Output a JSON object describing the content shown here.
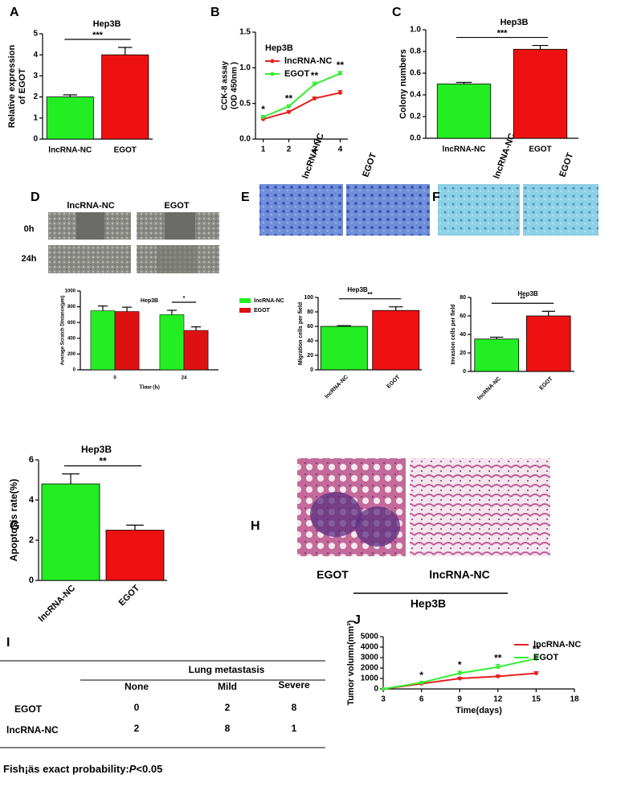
{
  "chart_data": [
    {
      "panel": "A",
      "type": "bar",
      "title": "Hep3B",
      "ylabel": [
        "Relative expression",
        "of EGOT"
      ],
      "categories": [
        "lncRNA-NC",
        "EGOT"
      ],
      "values": [
        2.0,
        4.0
      ],
      "errors": [
        0.1,
        0.35
      ],
      "colors": [
        "#22ee22",
        "#ee1111"
      ],
      "ylim": [
        0,
        5
      ],
      "yticks": [
        0,
        1,
        2,
        3,
        4,
        5
      ],
      "significance": "***"
    },
    {
      "panel": "B",
      "type": "line",
      "ylabel": [
        "CCK-8 assay",
        "(OD 450nm )"
      ],
      "legend_title": "Hep3B",
      "x": [
        1,
        2,
        3,
        4
      ],
      "xlim": [
        0.7,
        4.3
      ],
      "xticks": [
        1,
        2,
        3,
        4
      ],
      "series": [
        {
          "name": "lncRNA-NC",
          "color": "#e82020",
          "values": [
            0.28,
            0.38,
            0.57,
            0.65
          ],
          "errors": [
            0.02,
            0.02,
            0.02,
            0.03
          ]
        },
        {
          "name": "EGOT",
          "color": "#33ee33",
          "values": [
            0.31,
            0.46,
            0.77,
            0.92
          ],
          "errors": [
            0.02,
            0.02,
            0.03,
            0.03
          ]
        }
      ],
      "ylim": [
        0,
        1.5
      ],
      "yticks": [
        {
          "value": 0,
          "label": "0.0"
        },
        0.5,
        {
          "value": 1,
          "label": "1.0"
        },
        1.5
      ],
      "annotations": [
        "*",
        "**",
        "**",
        "**"
      ]
    },
    {
      "panel": "C",
      "type": "bar",
      "title": "Hep3B",
      "ylabel": "Colony numbers",
      "categories": [
        "lncRNA-NC",
        "EGOT"
      ],
      "values": [
        0.5,
        0.82
      ],
      "errors": [
        0.015,
        0.035
      ],
      "colors": [
        "#22ee22",
        "#ee1111"
      ],
      "ylim": [
        0,
        1
      ],
      "yticks": [
        {
          "value": 0,
          "label": "0.0"
        },
        0.2,
        0.4,
        0.6,
        0.8,
        {
          "value": 1,
          "label": "1.0"
        }
      ],
      "significance": "***"
    },
    {
      "panel": "D",
      "type": "bar",
      "title": "Hep3B",
      "ylabel": "Average Scratch Distance(μm)",
      "xlabel": "Time (h)",
      "categories": [
        "0",
        "24"
      ],
      "series": [
        {
          "name": "lncRNA-NC",
          "color": "#22ee22",
          "values": [
            750,
            700
          ],
          "errors": [
            60,
            55
          ]
        },
        {
          "name": "EGOT",
          "color": "#dd1111",
          "values": [
            740,
            500
          ],
          "errors": [
            55,
            45
          ]
        }
      ],
      "ylim": [
        0,
        1000
      ],
      "yticks": [
        0,
        200,
        400,
        600,
        800,
        1000
      ],
      "significance": [
        null,
        "*"
      ]
    },
    {
      "panel": "E",
      "type": "bar",
      "title": "Hep3B",
      "ylabel": "Migration cells per field",
      "categories": [
        "lncRNA-NC",
        "EGOT"
      ],
      "values": [
        60,
        82
      ],
      "errors": [
        1,
        5
      ],
      "colors": [
        "#22ee22",
        "#ee1111"
      ],
      "ylim": [
        0,
        100
      ],
      "yticks": [
        0,
        20,
        40,
        60,
        80,
        100
      ],
      "significance": "**"
    },
    {
      "panel": "F",
      "type": "bar",
      "title": "Hep3B",
      "ylabel": "Invasion cells per field",
      "categories": [
        "lncRNA-NC",
        "EGOT"
      ],
      "values": [
        35,
        60
      ],
      "errors": [
        2,
        5
      ],
      "colors": [
        "#22ee22",
        "#ee1111"
      ],
      "ylim": [
        0,
        80
      ],
      "yticks": [
        0,
        20,
        40,
        60,
        80
      ],
      "significance": "**"
    },
    {
      "panel": "G",
      "type": "bar",
      "title": "Hep3B",
      "ylabel": "Apoptosis rate(%)",
      "categories": [
        "lncRNA-NC",
        "EGOT"
      ],
      "values": [
        4.8,
        2.5
      ],
      "errors": [
        0.5,
        0.25
      ],
      "colors": [
        "#22ee22",
        "#ee1111"
      ],
      "ylim": [
        0,
        6
      ],
      "yticks": [
        0,
        2,
        4,
        6
      ],
      "significance": "**"
    },
    {
      "panel": "J",
      "type": "line",
      "ylabel": [
        "Tumor volumn(mm³)"
      ],
      "xlabel": "Time(days)",
      "x": [
        3,
        6,
        9,
        12,
        15
      ],
      "xlim": [
        3,
        18
      ],
      "xticks": [
        3,
        6,
        9,
        12,
        15,
        18
      ],
      "series": [
        {
          "name": "lncRNA-NC",
          "color": "#e82020",
          "values": [
            0,
            500,
            1000,
            1200,
            1500
          ],
          "errors": [
            0,
            80,
            100,
            120,
            150
          ]
        },
        {
          "name": "EGOT",
          "color": "#33ee33",
          "values": [
            0,
            600,
            1500,
            2100,
            2900
          ],
          "errors": [
            0,
            100,
            200,
            250,
            300
          ]
        }
      ],
      "ylim": [
        0,
        5000
      ],
      "yticks": [
        0,
        1000,
        2000,
        3000,
        4000,
        5000
      ],
      "annotations": [
        null,
        "*",
        "*",
        "**",
        "**"
      ]
    }
  ],
  "images": {
    "D": {
      "columns": [
        "lncRNA-NC",
        "EGOT"
      ],
      "rows": [
        "0h",
        "24h"
      ]
    },
    "E": {
      "columns": [
        "lncRNA-NC",
        "EGOT"
      ]
    },
    "F": {
      "columns": [
        "lncRNA-NC",
        "EGOT"
      ]
    },
    "H": {
      "panel": "H",
      "labels": [
        "EGOT",
        "lncRNA-NC"
      ],
      "group": "Hep3B"
    }
  },
  "table": {
    "panel": "I",
    "title": "Lung metastasis",
    "columns": [
      "None",
      "Mild",
      "Severe"
    ],
    "rows": [
      {
        "name": "EGOT",
        "values": [
          0,
          2,
          8
        ]
      },
      {
        "name": "lncRNA-NC",
        "values": [
          2,
          8,
          1
        ]
      }
    ],
    "footnote": [
      "Fish¡äs exact probability:",
      "P",
      "<0.05"
    ]
  }
}
